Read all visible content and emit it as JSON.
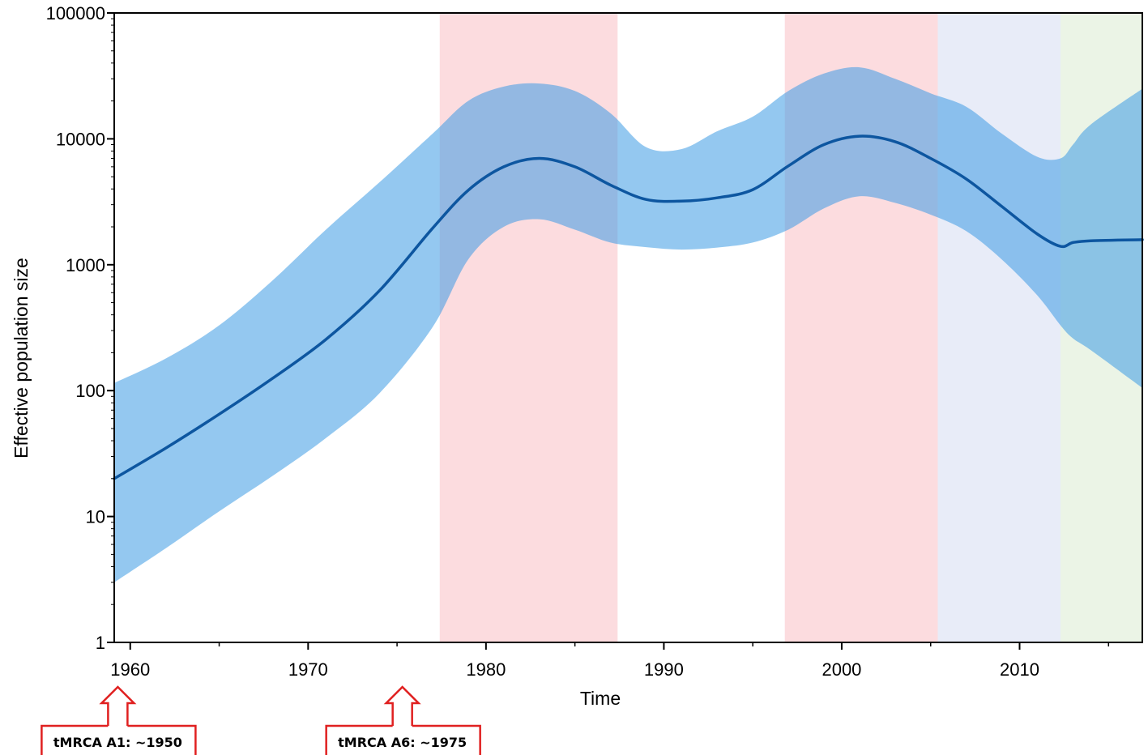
{
  "chart_data": {
    "type": "area",
    "xlabel": "Time",
    "ylabel": "Effective population size",
    "xlim": [
      1959.1,
      2016.9
    ],
    "ylim": [
      1,
      100000
    ],
    "yscale": "log",
    "x_ticks": [
      "1960",
      "1970",
      "1980",
      "1990",
      "2000",
      "2010"
    ],
    "y_ticks": [
      "1",
      "10",
      "100",
      "1000",
      "10000",
      "100000"
    ],
    "grid": false,
    "legend": "none",
    "shaded_periods": [
      {
        "start": 1977.4,
        "end": 1987.4,
        "color": "#fcdcdf"
      },
      {
        "start": 1996.8,
        "end": 2005.4,
        "color": "#fcdcdf"
      },
      {
        "start": 2005.4,
        "end": 2012.3,
        "color": "#e8ecf8"
      },
      {
        "start": 2012.3,
        "end": 2016.9,
        "color": "#ebf4e6"
      }
    ],
    "series": [
      {
        "color": "#0d56a0",
        "x": [
          1959.1,
          1962,
          1965,
          1968,
          1971,
          1974,
          1977,
          1979,
          1981,
          1983,
          1985,
          1987,
          1989,
          1991,
          1993,
          1995,
          1997,
          1999,
          2001,
          2003,
          2005,
          2007,
          2009,
          2011,
          2012.3,
          2013,
          2014,
          2016.9
        ],
        "median": [
          20,
          35,
          65,
          125,
          255,
          620,
          1950,
          3900,
          6000,
          7000,
          6000,
          4300,
          3300,
          3200,
          3400,
          3950,
          6100,
          9000,
          10500,
          9500,
          7000,
          4800,
          2900,
          1750,
          1400,
          1500,
          1550,
          1580
        ],
        "lower": [
          3,
          5.6,
          11,
          21,
          42,
          95,
          320,
          1100,
          2000,
          2300,
          1900,
          1500,
          1380,
          1320,
          1370,
          1500,
          1900,
          2800,
          3500,
          3100,
          2500,
          1850,
          1100,
          570,
          330,
          260,
          210,
          105
        ],
        "upper": [
          115,
          180,
          330,
          750,
          1900,
          4500,
          11000,
          20000,
          26000,
          27500,
          24000,
          16000,
          8600,
          8300,
          11500,
          15000,
          24000,
          33000,
          37000,
          30000,
          23000,
          18000,
          11000,
          7200,
          7000,
          9000,
          13000,
          25000
        ]
      }
    ],
    "annotations": [
      {
        "text": "tMRCA A1: ~1950",
        "points_to": 1959.3
      },
      {
        "text": "tMRCA A6: ~1975",
        "points_to": 1975.3
      }
    ]
  }
}
